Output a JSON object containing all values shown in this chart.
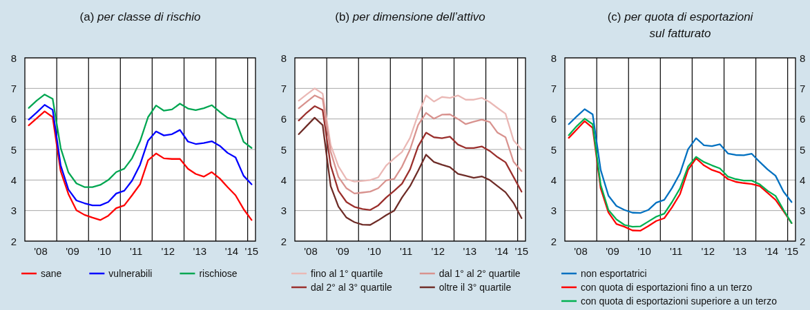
{
  "chart_data": [
    {
      "type": "line",
      "title": "(a) per classe di rischio",
      "x": [
        "2008-02-15",
        "2008-05-15",
        "2008-08-15",
        "2008-11-15",
        "2009-02-15",
        "2009-05-15",
        "2009-08-15",
        "2009-11-15",
        "2010-02-15",
        "2010-05-15",
        "2010-08-15",
        "2010-11-15",
        "2011-02-15",
        "2011-05-15",
        "2011-08-15",
        "2011-11-15",
        "2012-02-15",
        "2012-05-15",
        "2012-08-15",
        "2012-11-15",
        "2013-02-15",
        "2013-05-15",
        "2013-08-15",
        "2013-11-15",
        "2014-02-15",
        "2014-05-15",
        "2014-08-15",
        "2014-11-15",
        "2015-02-15"
      ],
      "xlim": [
        "2008-01-01",
        "2015-04-01"
      ],
      "xticks": [
        {
          "value": "2008-07-01",
          "label": "'08"
        },
        {
          "value": "2009-07-01",
          "label": "'09"
        },
        {
          "value": "2010-07-01",
          "label": "'10"
        },
        {
          "value": "2011-07-01",
          "label": "'11"
        },
        {
          "value": "2012-07-01",
          "label": "'12"
        },
        {
          "value": "2013-07-01",
          "label": "'13"
        },
        {
          "value": "2014-07-01",
          "label": "'14"
        },
        {
          "value": "2015-02-15",
          "label": "'15"
        }
      ],
      "ylim": [
        2,
        8
      ],
      "yticks": [
        2,
        3,
        4,
        5,
        6,
        7,
        8
      ],
      "grid": "y",
      "legend": "bottom",
      "ref_lines": [
        {
          "axis": "x",
          "value": "2009-01-01",
          "color": "#000000"
        },
        {
          "axis": "x",
          "value": "2010-01-01",
          "color": "#000000"
        },
        {
          "axis": "x",
          "value": "2011-01-01",
          "color": "#000000"
        },
        {
          "axis": "x",
          "value": "2012-01-01",
          "color": "#000000"
        },
        {
          "axis": "x",
          "value": "2013-01-01",
          "color": "#000000"
        },
        {
          "axis": "x",
          "value": "2014-01-01",
          "color": "#000000"
        },
        {
          "axis": "x",
          "value": "2015-01-01",
          "color": "#000000"
        }
      ],
      "series": [
        {
          "name": "sane",
          "color": "#ff0000",
          "values": [
            5.79,
            6.02,
            6.25,
            6.06,
            4.29,
            3.54,
            3.01,
            2.86,
            2.77,
            2.69,
            2.83,
            3.08,
            3.17,
            3.5,
            3.86,
            4.65,
            4.87,
            4.71,
            4.69,
            4.69,
            4.37,
            4.2,
            4.11,
            4.26,
            4.05,
            3.77,
            3.5,
            3.05,
            2.69
          ]
        },
        {
          "name": "vulnerabili",
          "color": "#0000ff",
          "values": [
            5.98,
            6.21,
            6.46,
            6.3,
            4.48,
            3.69,
            3.33,
            3.24,
            3.17,
            3.17,
            3.28,
            3.56,
            3.65,
            3.98,
            4.5,
            5.29,
            5.59,
            5.46,
            5.5,
            5.64,
            5.26,
            5.18,
            5.21,
            5.27,
            5.12,
            4.89,
            4.74,
            4.14,
            3.86
          ]
        },
        {
          "name": "rischiose",
          "color": "#00a651",
          "values": [
            6.36,
            6.6,
            6.8,
            6.66,
            5.05,
            4.25,
            3.89,
            3.77,
            3.77,
            3.84,
            4.0,
            4.26,
            4.37,
            4.71,
            5.27,
            6.06,
            6.44,
            6.27,
            6.31,
            6.5,
            6.34,
            6.29,
            6.35,
            6.45,
            6.23,
            6.04,
            5.98,
            5.25,
            5.05
          ]
        }
      ]
    },
    {
      "type": "line",
      "title": "(b) per dimensione dell’attivo",
      "x": [
        "2008-02-15",
        "2008-05-15",
        "2008-08-15",
        "2008-11-15",
        "2009-02-15",
        "2009-05-15",
        "2009-08-15",
        "2009-11-15",
        "2010-02-15",
        "2010-05-15",
        "2010-08-15",
        "2010-11-15",
        "2011-02-15",
        "2011-05-15",
        "2011-08-15",
        "2011-11-15",
        "2012-02-15",
        "2012-05-15",
        "2012-08-15",
        "2012-11-15",
        "2013-02-15",
        "2013-05-15",
        "2013-08-15",
        "2013-11-15",
        "2014-02-15",
        "2014-05-15",
        "2014-08-15",
        "2014-11-15",
        "2015-02-15"
      ],
      "xlim": [
        "2008-01-01",
        "2015-04-01"
      ],
      "xticks": [
        {
          "value": "2008-07-01",
          "label": "'08"
        },
        {
          "value": "2009-07-01",
          "label": "'09"
        },
        {
          "value": "2010-07-01",
          "label": "'10"
        },
        {
          "value": "2011-07-01",
          "label": "'11"
        },
        {
          "value": "2012-07-01",
          "label": "'12"
        },
        {
          "value": "2013-07-01",
          "label": "'13"
        },
        {
          "value": "2014-07-01",
          "label": "'14"
        },
        {
          "value": "2015-02-15",
          "label": "'15"
        }
      ],
      "ylim": [
        2,
        8
      ],
      "yticks": [
        2,
        3,
        4,
        5,
        6,
        7,
        8
      ],
      "grid": "y",
      "legend": "bottom",
      "ref_lines": [
        {
          "axis": "x",
          "value": "2009-01-01",
          "color": "#000000"
        },
        {
          "axis": "x",
          "value": "2010-01-01",
          "color": "#000000"
        },
        {
          "axis": "x",
          "value": "2011-01-01",
          "color": "#000000"
        },
        {
          "axis": "x",
          "value": "2012-01-01",
          "color": "#000000"
        },
        {
          "axis": "x",
          "value": "2013-01-01",
          "color": "#000000"
        },
        {
          "axis": "x",
          "value": "2014-01-01",
          "color": "#000000"
        },
        {
          "axis": "x",
          "value": "2015-01-01",
          "color": "#000000"
        }
      ],
      "series": [
        {
          "name": "fino al 1° quartile",
          "color": "#eab8b5",
          "values": [
            6.6,
            6.8,
            7.0,
            6.83,
            5.15,
            4.45,
            4.03,
            3.95,
            3.97,
            4.0,
            4.09,
            4.48,
            4.71,
            4.92,
            5.38,
            6.14,
            6.77,
            6.57,
            6.72,
            6.69,
            6.77,
            6.63,
            6.63,
            6.69,
            6.55,
            6.36,
            6.17,
            5.3,
            5.0
          ]
        },
        {
          "name": "dal 1° al 2° quartile",
          "color": "#d8928e",
          "values": [
            6.35,
            6.56,
            6.77,
            6.65,
            4.93,
            4.1,
            3.73,
            3.56,
            3.59,
            3.62,
            3.73,
            3.99,
            4.04,
            4.44,
            5.0,
            5.8,
            6.2,
            6.01,
            6.14,
            6.15,
            6.0,
            5.83,
            5.91,
            5.98,
            5.9,
            5.55,
            5.4,
            4.6,
            4.29
          ]
        },
        {
          "name": "dal 2° al 3° quartile",
          "color": "#9a2f2c",
          "values": [
            5.95,
            6.2,
            6.42,
            6.29,
            4.48,
            3.65,
            3.28,
            3.12,
            3.05,
            3.02,
            3.17,
            3.43,
            3.65,
            3.88,
            4.35,
            5.1,
            5.55,
            5.4,
            5.37,
            5.42,
            5.16,
            5.05,
            5.05,
            5.1,
            4.95,
            4.75,
            4.58,
            4.1,
            3.62
          ]
        },
        {
          "name": "oltre il 3° quartile",
          "color": "#6e2c27",
          "values": [
            5.5,
            5.77,
            6.04,
            5.8,
            3.8,
            3.13,
            2.77,
            2.62,
            2.54,
            2.53,
            2.68,
            2.85,
            3.0,
            3.43,
            3.8,
            4.3,
            4.83,
            4.59,
            4.5,
            4.42,
            4.2,
            4.14,
            4.07,
            4.12,
            4.0,
            3.8,
            3.6,
            3.25,
            2.75
          ]
        }
      ]
    },
    {
      "type": "line",
      "title": "(c) per quota di esportazioni sul fatturato",
      "x": [
        "2008-02-15",
        "2008-05-15",
        "2008-08-15",
        "2008-11-15",
        "2009-02-15",
        "2009-05-15",
        "2009-08-15",
        "2009-11-15",
        "2010-02-15",
        "2010-05-15",
        "2010-08-15",
        "2010-11-15",
        "2011-02-15",
        "2011-05-15",
        "2011-08-15",
        "2011-11-15",
        "2012-02-15",
        "2012-05-15",
        "2012-08-15",
        "2012-11-15",
        "2013-02-15",
        "2013-05-15",
        "2013-08-15",
        "2013-11-15",
        "2014-02-15",
        "2014-05-15",
        "2014-08-15",
        "2014-11-15",
        "2015-02-15"
      ],
      "xlim": [
        "2008-01-01",
        "2015-04-01"
      ],
      "xticks": [
        {
          "value": "2008-07-01",
          "label": "'08"
        },
        {
          "value": "2009-07-01",
          "label": "'09"
        },
        {
          "value": "2010-07-01",
          "label": "'10"
        },
        {
          "value": "2011-07-01",
          "label": "'11"
        },
        {
          "value": "2012-07-01",
          "label": "'12"
        },
        {
          "value": "2013-07-01",
          "label": "'13"
        },
        {
          "value": "2014-07-01",
          "label": "'14"
        },
        {
          "value": "2015-02-15",
          "label": "'15"
        }
      ],
      "ylim": [
        2,
        8
      ],
      "yticks": [
        2,
        3,
        4,
        5,
        6,
        7,
        8
      ],
      "y2lim": [
        2,
        8
      ],
      "y2ticks": [
        2,
        3,
        4,
        5,
        6,
        7,
        8
      ],
      "grid": "y",
      "legend": "bottom",
      "ref_lines": [
        {
          "axis": "x",
          "value": "2009-01-01",
          "color": "#000000"
        },
        {
          "axis": "x",
          "value": "2010-01-01",
          "color": "#000000"
        },
        {
          "axis": "x",
          "value": "2011-01-01",
          "color": "#000000"
        },
        {
          "axis": "x",
          "value": "2012-01-01",
          "color": "#000000"
        },
        {
          "axis": "x",
          "value": "2013-01-01",
          "color": "#000000"
        },
        {
          "axis": "x",
          "value": "2014-01-01",
          "color": "#000000"
        },
        {
          "axis": "x",
          "value": "2015-01-01",
          "color": "#000000"
        }
      ],
      "series": [
        {
          "name": "non esportatrici",
          "color": "#0070c0",
          "values": [
            5.83,
            6.08,
            6.32,
            6.15,
            4.33,
            3.49,
            3.15,
            3.02,
            2.93,
            2.92,
            3.02,
            3.26,
            3.35,
            3.74,
            4.22,
            5.01,
            5.37,
            5.14,
            5.11,
            5.17,
            4.87,
            4.82,
            4.81,
            4.86,
            4.59,
            4.35,
            4.14,
            3.62,
            3.28
          ]
        },
        {
          "name": "con quota di esportazioni fino a un terzo",
          "color": "#ff0000",
          "values": [
            5.38,
            5.65,
            5.93,
            5.71,
            3.73,
            2.94,
            2.56,
            2.47,
            2.35,
            2.34,
            2.49,
            2.66,
            2.75,
            3.11,
            3.54,
            4.33,
            4.71,
            4.48,
            4.33,
            4.24,
            4.03,
            3.94,
            3.9,
            3.87,
            3.8,
            3.58,
            3.35,
            2.98,
            2.59
          ]
        },
        {
          "name": "con quota di esportazioni superiore a un terzo",
          "color": "#00b050",
          "values": [
            5.47,
            5.76,
            6.01,
            5.83,
            3.84,
            3.02,
            2.71,
            2.53,
            2.47,
            2.48,
            2.64,
            2.8,
            2.9,
            3.28,
            3.73,
            4.44,
            4.76,
            4.59,
            4.48,
            4.38,
            4.11,
            4.03,
            3.98,
            3.98,
            3.86,
            3.65,
            3.48,
            3.02,
            2.59
          ]
        }
      ]
    }
  ]
}
